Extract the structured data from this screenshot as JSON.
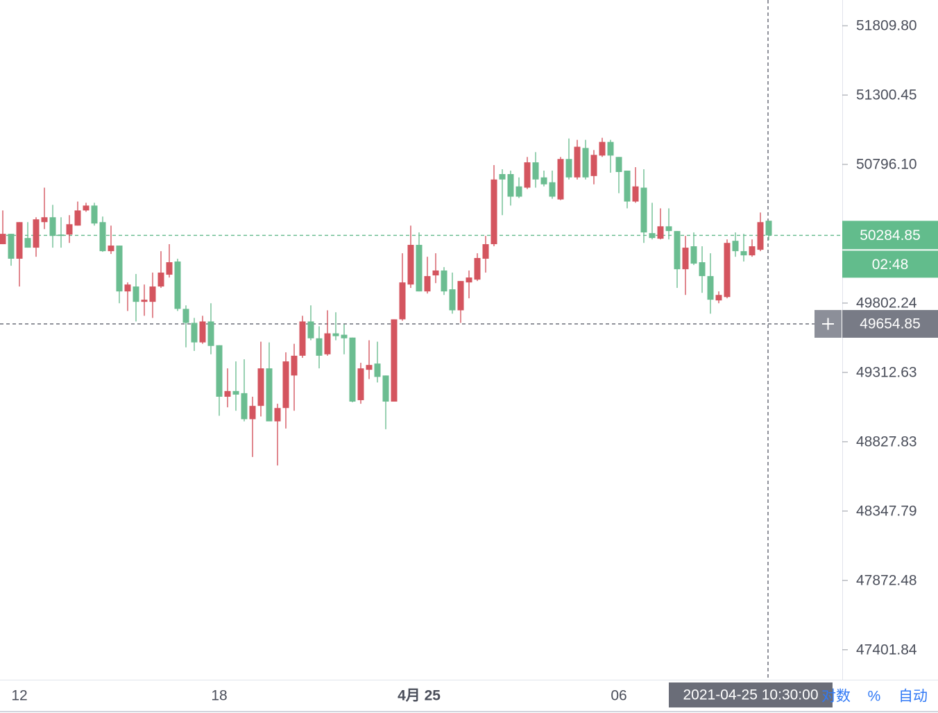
{
  "chart_data": {
    "type": "candlestick",
    "categories": [
      null,
      null,
      "12",
      null,
      null,
      null,
      null,
      null,
      null,
      null,
      null,
      null,
      null,
      null,
      null,
      null,
      null,
      null,
      null,
      null,
      null,
      null,
      null,
      null,
      null,
      null,
      "18",
      null,
      null,
      null,
      null,
      null,
      null,
      null,
      null,
      null,
      null,
      null,
      null,
      null,
      null,
      null,
      null,
      null,
      null,
      null,
      null,
      null,
      null,
      null,
      "4月 25",
      null,
      null,
      null,
      null,
      null,
      null,
      null,
      null,
      null,
      null,
      null,
      null,
      null,
      null,
      null,
      null,
      null,
      null,
      null,
      null,
      null,
      null,
      null,
      "06",
      null,
      null,
      null,
      null,
      null,
      null,
      null,
      null,
      null,
      null,
      null,
      null,
      null,
      null,
      null,
      null,
      null,
      null
    ],
    "open": [
      50222,
      50296,
      50118,
      50266,
      50197,
      50380,
      50415,
      50291,
      50291,
      50355,
      50464,
      50499,
      50380,
      50172,
      50212,
      49885,
      49920,
      49811,
      49811,
      49920,
      50004,
      50098,
      49761,
      49662,
      49524,
      49672,
      49504,
      49142,
      49182,
      49167,
      48985,
      49078,
      49341,
      48970,
      49063,
      49291,
      49430,
      49672,
      49553,
      49440,
      49588,
      49578,
      49558,
      49118,
      49331,
      49375,
      49291,
      49108,
      49687,
      49934,
      50217,
      49885,
      49999,
      50034,
      49900,
      49751,
      49949,
      49969,
      50118,
      50222,
      50726,
      50726,
      50637,
      50628,
      50811,
      50702,
      50667,
      50543,
      50835,
      50702,
      50915,
      50712,
      50860,
      50959,
      50850,
      50751,
      50528,
      50628,
      50301,
      50261,
      50350,
      50316,
      50043,
      50207,
      50093,
      49994,
      49821,
      49845,
      50246,
      50172,
      50142,
      50182,
      50390
    ],
    "high": [
      50464,
      50296,
      50380,
      50380,
      50415,
      50628,
      50504,
      50415,
      50430,
      50528,
      50519,
      50519,
      50420,
      50355,
      50212,
      49949,
      50009,
      49934,
      50019,
      50172,
      50222,
      50118,
      49786,
      49697,
      49712,
      49801,
      49504,
      49341,
      49390,
      49405,
      49142,
      49529,
      49524,
      49093,
      49454,
      49514,
      49712,
      49786,
      49638,
      49751,
      49737,
      49652,
      49558,
      49380,
      49539,
      49529,
      49291,
      49687,
      50157,
      50355,
      50306,
      50132,
      50157,
      50058,
      50019,
      49959,
      50034,
      50157,
      50281,
      50791,
      50761,
      50751,
      50702,
      50850,
      50885,
      50751,
      50751,
      50850,
      50984,
      50974,
      50974,
      50900,
      50989,
      50974,
      50850,
      50751,
      50776,
      50761,
      50519,
      50479,
      50479,
      50316,
      50281,
      50306,
      50207,
      50157,
      49885,
      50256,
      50306,
      50296,
      50256,
      50449,
      50390
    ],
    "low": [
      50222,
      50068,
      49920,
      50197,
      50132,
      50330,
      50197,
      50197,
      50231,
      50355,
      50454,
      50355,
      50167,
      50152,
      49801,
      49746,
      49672,
      49712,
      49697,
      49910,
      49984,
      49746,
      49489,
      49464,
      49514,
      49440,
      49009,
      49068,
      49044,
      48970,
      48722,
      49004,
      48970,
      48663,
      48920,
      49044,
      49415,
      49539,
      49341,
      49430,
      49539,
      49440,
      49103,
      49093,
      49266,
      49242,
      48915,
      49108,
      49677,
      49910,
      49885,
      49870,
      49944,
      49860,
      49727,
      49662,
      49836,
      49959,
      50019,
      50207,
      50430,
      50499,
      50553,
      50618,
      50628,
      50637,
      50548,
      50538,
      50687,
      50687,
      50687,
      50652,
      50850,
      50736,
      50588,
      50479,
      50519,
      50231,
      50256,
      50256,
      50256,
      49910,
      49860,
      50073,
      49875,
      49727,
      49801,
      49836,
      50132,
      50098,
      50132,
      50172,
      50251
    ],
    "close": [
      50296,
      50118,
      50380,
      50197,
      50400,
      50415,
      50281,
      50281,
      50365,
      50464,
      50499,
      50370,
      50172,
      50212,
      49885,
      49934,
      49811,
      49826,
      49920,
      50019,
      50093,
      49761,
      49662,
      49524,
      49672,
      49499,
      49142,
      49182,
      49157,
      48985,
      49078,
      49341,
      48970,
      49063,
      49390,
      49430,
      49672,
      49553,
      49430,
      49588,
      49568,
      49553,
      49108,
      49341,
      49365,
      49281,
      49108,
      49687,
      49949,
      50217,
      49885,
      49994,
      50034,
      49885,
      49751,
      49959,
      49984,
      50123,
      50222,
      50687,
      50687,
      50563,
      50563,
      50811,
      50687,
      50652,
      50563,
      50835,
      50702,
      50924,
      50702,
      50865,
      50959,
      50860,
      50741,
      50528,
      50637,
      50306,
      50266,
      50350,
      50316,
      50043,
      50197,
      50083,
      49994,
      49826,
      49860,
      50231,
      50172,
      50142,
      50207,
      50380,
      50284.85
    ],
    "up_color": "#d4555f",
    "down_color": "#6bbd91",
    "log_scale": true,
    "grid": false,
    "ylim": [
      47200,
      52000
    ],
    "yticks": [
      {
        "value": 51809.8,
        "label": "51809.80"
      },
      51300.45,
      {
        "value": 50796.1,
        "label": "50796.10"
      },
      49802.24,
      49312.63,
      48827.83,
      48347.79,
      47872.48,
      47401.84
    ],
    "countdown": "02:48",
    "crosshair": {
      "price": 49654.85,
      "time": "2021-04-25 10:30:00"
    },
    "scale_buttons": [
      "对数",
      "%",
      "自动"
    ]
  }
}
